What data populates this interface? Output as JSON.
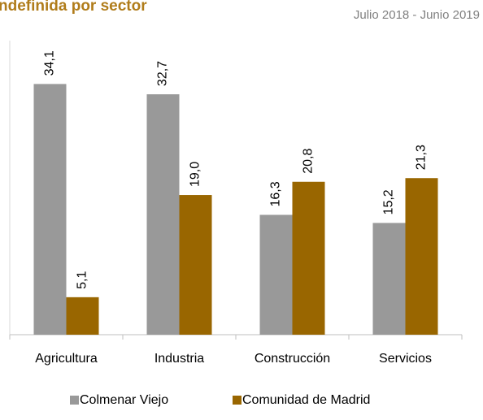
{
  "chart_data": {
    "type": "bar",
    "title": "ndefinida por sector",
    "subtitle": "Julio 2018 - Junio 2019",
    "categories": [
      "Agricultura",
      "Industria",
      "Construcción",
      "Servicios"
    ],
    "series": [
      {
        "name": "Colmenar Viejo",
        "color": "#999999",
        "values": [
          34.1,
          32.7,
          16.3,
          15.2
        ],
        "value_labels": [
          "34,1",
          "32,7",
          "16,3",
          "15,2"
        ]
      },
      {
        "name": "Comunidad de Madrid",
        "color": "#996600",
        "values": [
          5.1,
          19.0,
          20.8,
          21.3
        ],
        "value_labels": [
          "5,1",
          "19,0",
          "20,8",
          "21,3"
        ]
      }
    ],
    "ylim": [
      0,
      40
    ],
    "legend": "bottom"
  }
}
